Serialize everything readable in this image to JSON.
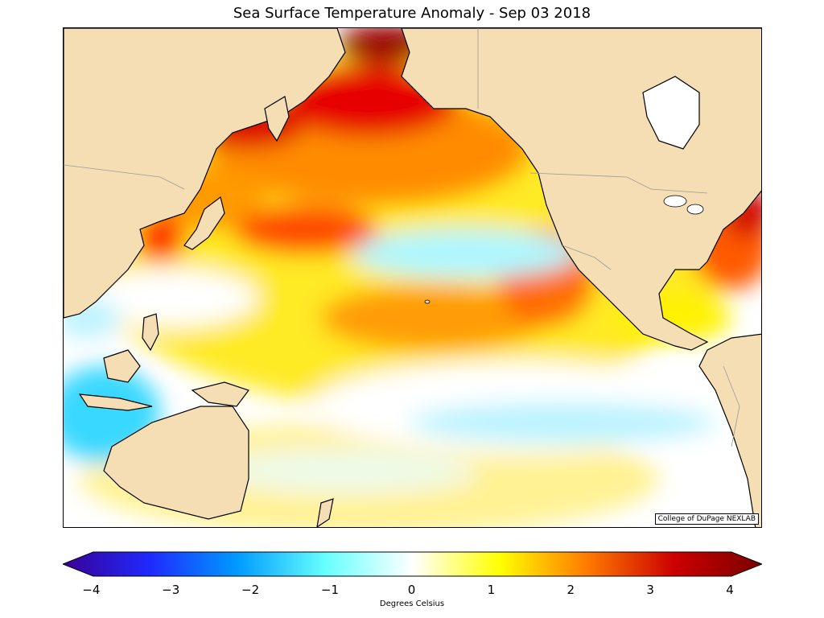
{
  "title": "Sea Surface Temperature Anomaly - Sep 03 2018",
  "credit": "College of DuPage NEXLAB",
  "colorbar": {
    "label": "Degrees Celsius",
    "min": -4,
    "max": 4,
    "ticks": [
      "−4",
      "−3",
      "−2",
      "−1",
      "0",
      "1",
      "2",
      "3",
      "4"
    ],
    "stops": [
      "#3a0096",
      "#1f2aff",
      "#009bff",
      "#66ffff",
      "#ffffff",
      "#ffff00",
      "#ff7a00",
      "#cc0000",
      "#7a0000"
    ]
  },
  "colors": {
    "land": "#f5deb3",
    "coast": "#000000",
    "borders": "#9a9a9a"
  }
}
